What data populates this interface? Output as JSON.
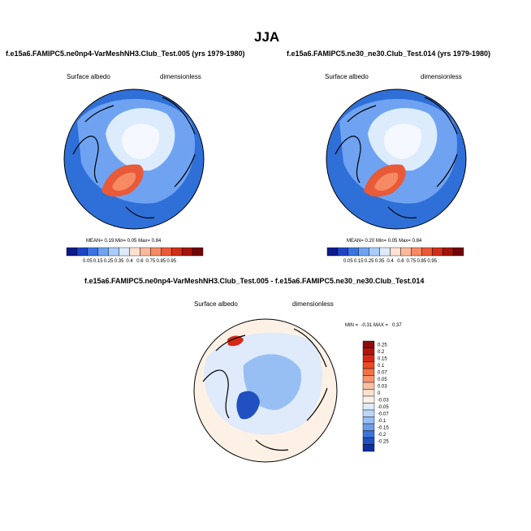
{
  "title": "JJA",
  "panels": [
    {
      "case": "f.e15a6.FAMIPC5.ne0np4-VarMeshNH3.Club_Test.005 (yrs 1979-1980)",
      "variable": "Surface albedo",
      "units": "dimensionless",
      "stats": {
        "mean_label": "MEAN=",
        "mean": "0.19",
        "min_label": "Min=",
        "min": "0.05",
        "max_label": "Max=",
        "max": "0.84"
      }
    },
    {
      "case": "f.e15a6.FAMIPC5.ne30_ne30.Club_Test.014 (yrs 1979-1980)",
      "variable": "Surface albedo",
      "units": "dimensionless",
      "stats": {
        "mean_label": "MEAN=",
        "mean": "0.20",
        "min_label": "Min=",
        "min": "0.05",
        "max_label": "Max=",
        "max": "0.84"
      }
    }
  ],
  "diff": {
    "title": "f.e15a6.FAMIPC5.ne0np4-VarMeshNH3.Club_Test.005 - f.e15a6.FAMIPC5.ne30_ne30.Club_Test.014",
    "variable": "Surface albedo",
    "units": "dimensionless",
    "stats": "MIN =  -0.31 MAX =   0.37"
  },
  "chart_data": [
    {
      "type": "heatmap",
      "projection": "north polar stereographic",
      "title": "f.e15a6.FAMIPC5.ne0np4-VarMeshNH3.Club_Test.005 (yrs 1979-1980)",
      "field": "Surface albedo",
      "units": "dimensionless",
      "mean": 0.19,
      "min": 0.05,
      "max": 0.84,
      "colorbar_levels": [
        "0.05",
        "0.15",
        "0.25",
        "0.35",
        "0.4",
        "0.6",
        "0.75",
        "0.85",
        "0.95"
      ],
      "colorbar_colors": [
        "#0d1a8c",
        "#1c44c4",
        "#3a74e0",
        "#6fa3f2",
        "#a9cdf9",
        "#dcecfd",
        "#fde2d2",
        "#fbb99a",
        "#f58a64",
        "#e85a38",
        "#cf2f19",
        "#a3140b",
        "#700505"
      ]
    },
    {
      "type": "heatmap",
      "projection": "north polar stereographic",
      "title": "f.e15a6.FAMIPC5.ne30_ne30.Club_Test.014 (yrs 1979-1980)",
      "field": "Surface albedo",
      "units": "dimensionless",
      "mean": 0.2,
      "min": 0.05,
      "max": 0.84,
      "colorbar_levels": [
        "0.05",
        "0.15",
        "0.25",
        "0.35",
        "0.4",
        "0.6",
        "0.75",
        "0.85",
        "0.95"
      ],
      "colorbar_colors": [
        "#0d1a8c",
        "#1c44c4",
        "#3a74e0",
        "#6fa3f2",
        "#a9cdf9",
        "#dcecfd",
        "#fde2d2",
        "#fbb99a",
        "#f58a64",
        "#e85a38",
        "#cf2f19",
        "#a3140b",
        "#700505"
      ]
    },
    {
      "type": "heatmap",
      "projection": "north polar stereographic",
      "title": "f.e15a6.FAMIPC5.ne0np4-VarMeshNH3.Club_Test.005 - f.e15a6.FAMIPC5.ne30_ne30.Club_Test.014",
      "field": "Surface albedo",
      "units": "dimensionless",
      "min": -0.31,
      "max": 0.37,
      "colorbar_levels": [
        "0.25",
        "0.2",
        "0.15",
        "0.1",
        "0.07",
        "0.05",
        "0.03",
        "0",
        "-0.03",
        "-0.05",
        "-0.07",
        "-0.1",
        "-0.15",
        "-0.2",
        "-0.25"
      ],
      "colorbar_colors": [
        "#8b0c0c",
        "#b3140f",
        "#d52914",
        "#ea4a21",
        "#f37144",
        "#f79472",
        "#fbbfa2",
        "#fde0cf",
        "#fdf1e6",
        "#dfeafb",
        "#bcd6f8",
        "#97bff4",
        "#6a9ce8",
        "#3d74d8",
        "#2050c0",
        "#0e2fa0"
      ]
    }
  ]
}
